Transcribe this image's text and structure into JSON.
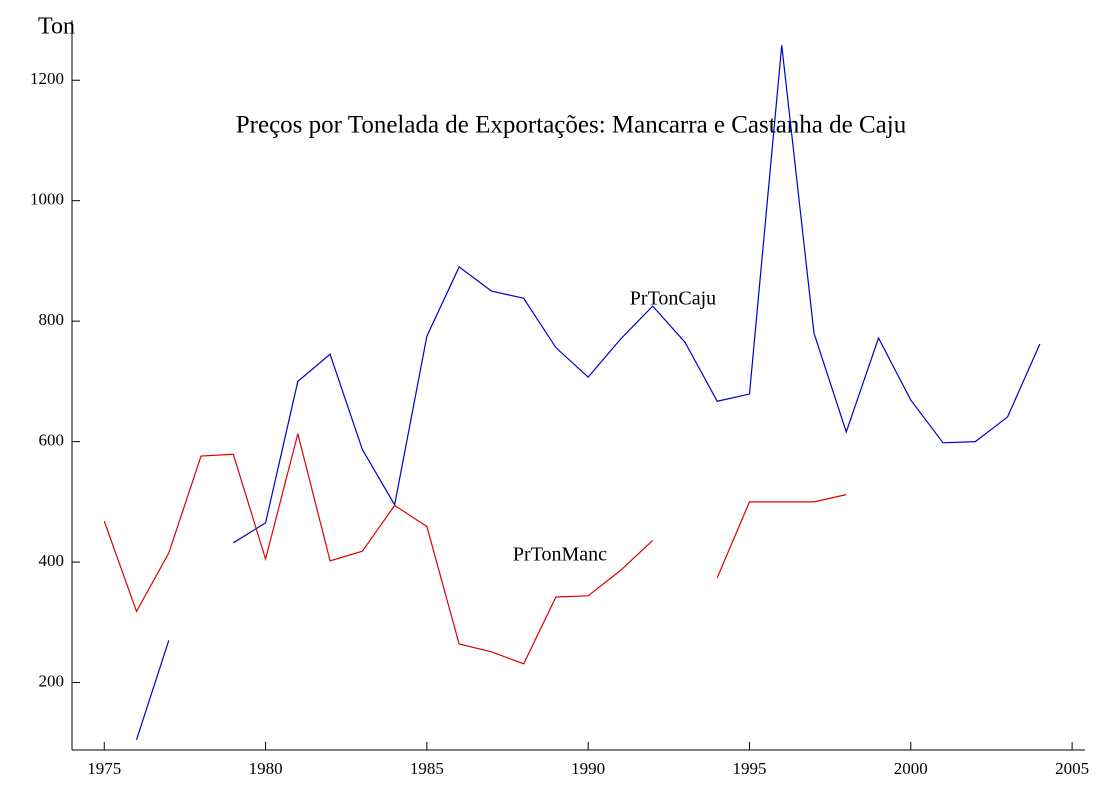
{
  "chart_data": {
    "type": "line",
    "title": "Preços por Tonelada de Exportações: Mancarra e Castanha de Caju",
    "y_label": "Ton",
    "x": [
      1975,
      1976,
      1977,
      1978,
      1979,
      1980,
      1981,
      1982,
      1983,
      1984,
      1985,
      1986,
      1987,
      1988,
      1989,
      1990,
      1991,
      1992,
      1993,
      1994,
      1995,
      1996,
      1997,
      1998,
      1999,
      2000,
      2001,
      2002,
      2003,
      2004
    ],
    "series": [
      {
        "name": "PrTonCaju",
        "color": "#0000cc",
        "values": [
          null,
          105,
          270,
          null,
          432,
          465,
          700,
          745,
          587,
          495,
          775,
          890,
          850,
          838,
          756,
          707,
          770,
          825,
          765,
          667,
          679,
          1258,
          780,
          616,
          772,
          669,
          598,
          600,
          641,
          762
        ]
      },
      {
        "name": "PrTonManc",
        "color": "#dd0000",
        "values": [
          468,
          318,
          415,
          576,
          579,
          405,
          613,
          402,
          418,
          494,
          459,
          264,
          251,
          231,
          342,
          344,
          386,
          436,
          null,
          374,
          500,
          500,
          500,
          512,
          null,
          null,
          null,
          null,
          null,
          null
        ]
      }
    ],
    "xlim": [
      1974,
      2005.4
    ],
    "ylim": [
      88,
      1300
    ],
    "xticks": [
      1975,
      1980,
      1985,
      1990,
      1995,
      2000,
      2005
    ],
    "yticks": [
      200,
      400,
      600,
      800,
      1000,
      1200
    ]
  }
}
